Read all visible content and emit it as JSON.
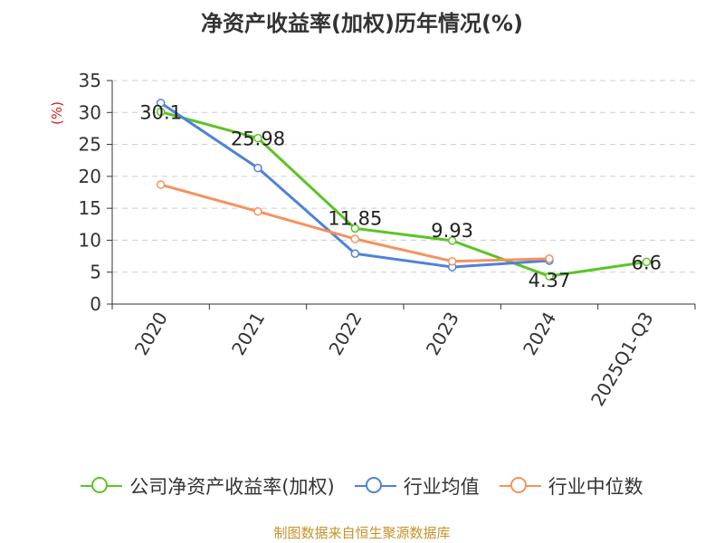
{
  "chart_data": {
    "type": "line",
    "title": "净资产收益率(加权)历年情况(%)",
    "ylabel": "(%)",
    "xlabel": "",
    "ylim": [
      0,
      35
    ],
    "yticks": [
      0,
      5,
      10,
      15,
      20,
      25,
      30,
      35
    ],
    "grid": true,
    "legend_position": "bottom",
    "categories": [
      "2020",
      "2021",
      "2022",
      "2023",
      "2024",
      "2025Q1-Q3"
    ],
    "series": [
      {
        "name": "公司净资产收益率(加权)",
        "color": "#5bc425",
        "values": [
          30.1,
          25.98,
          11.85,
          9.93,
          4.37,
          6.6
        ],
        "labels": [
          "30.1",
          "25.98",
          "11.85",
          "9.93",
          "4.37",
          "6.6"
        ]
      },
      {
        "name": "行业均值",
        "color": "#4f81d9",
        "values": [
          31.5,
          21.3,
          7.9,
          5.8,
          6.8,
          null
        ]
      },
      {
        "name": "行业中位数",
        "color": "#f5925e",
        "values": [
          18.7,
          14.5,
          10.2,
          6.7,
          7.1,
          null
        ]
      }
    ]
  },
  "footer": {
    "source": "制图数据来自恒生聚源数据库"
  }
}
